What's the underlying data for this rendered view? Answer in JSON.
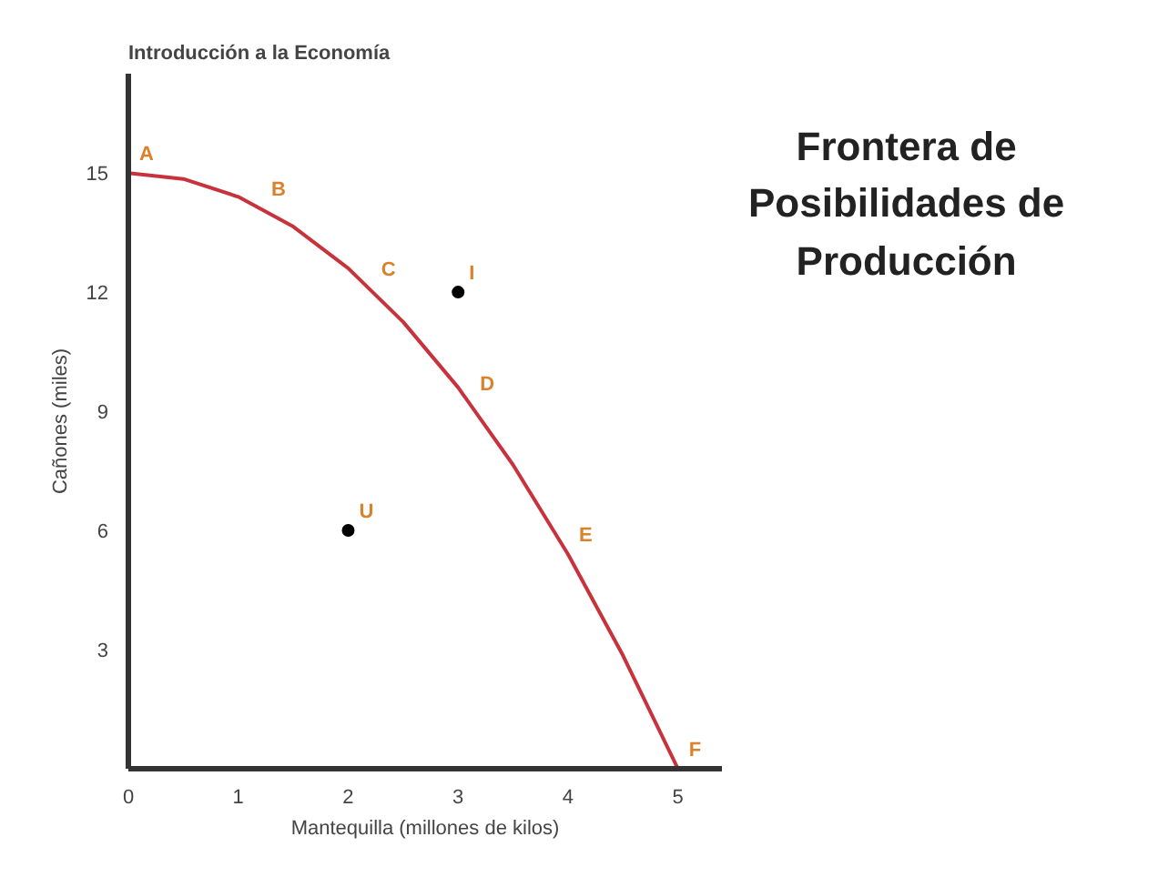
{
  "chart_data": {
    "type": "line",
    "title": "Frontera de\nPosibilidades de\nProducción",
    "subtitle": "Introducción a la Economía",
    "xlabel": "Mantequilla (millones de kilos)",
    "ylabel": "Cañones (miles)",
    "xlim": [
      0,
      5.4
    ],
    "ylim": [
      0,
      17.5
    ],
    "xticks": [
      0,
      1,
      2,
      3,
      4,
      5
    ],
    "yticks": [
      3,
      6,
      9,
      12,
      15
    ],
    "grid": false,
    "series": [
      {
        "color": "#c8323c",
        "x": [
          0,
          0.5,
          1,
          1.5,
          2,
          2.5,
          3,
          3.5,
          4,
          4.5,
          5
        ],
        "values": [
          15,
          14.85,
          14.4,
          13.65,
          12.6,
          11.25,
          9.6,
          7.65,
          5.4,
          2.85,
          0
        ]
      },
      {
        "type": "scatter",
        "marker": "circle",
        "color": "#000000",
        "x": [
          3,
          2
        ],
        "values": [
          12,
          6
        ]
      }
    ],
    "annotations": [
      {
        "text": "A",
        "x": 0,
        "y": 15
      },
      {
        "text": "B",
        "x": 1.2,
        "y": 14.1
      },
      {
        "text": "C",
        "x": 2.2,
        "y": 12.1
      },
      {
        "text": "D",
        "x": 3.1,
        "y": 9.2
      },
      {
        "text": "E",
        "x": 4,
        "y": 5.4
      },
      {
        "text": "F",
        "x": 5,
        "y": 0
      },
      {
        "text": "I",
        "x": 3,
        "y": 12
      },
      {
        "text": "U",
        "x": 2,
        "y": 6
      }
    ]
  }
}
